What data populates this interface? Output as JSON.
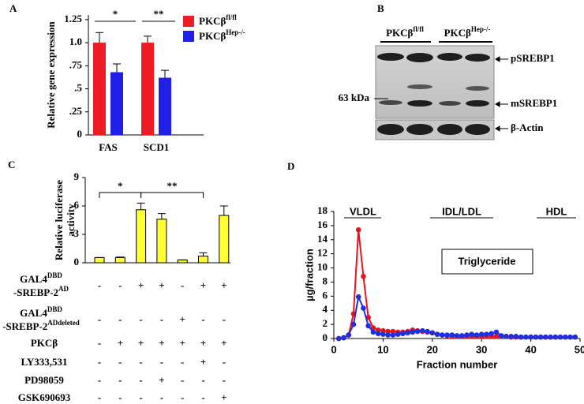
{
  "panel_labels": [
    "A",
    "B",
    "C",
    "D"
  ],
  "blot": {
    "lanes": [
      {
        "text": "PKCβ",
        "sup": "fl/fl"
      },
      {
        "text": "PKCβ",
        "sup": "Hep-/-"
      }
    ],
    "bands": [
      "pSREBP1",
      "mSREBP1",
      "β-Actin"
    ],
    "marker": "63 kDa"
  },
  "chart_data": [
    {
      "type": "bar",
      "ylabel": "Relative gene expression",
      "categories": [
        "FAS",
        "SCD1"
      ],
      "series": [
        {
          "name": "PKCβ",
          "name_superscript": "fl/fl",
          "color": "#ee1c24",
          "values": [
            1.0,
            1.0
          ],
          "errors": [
            0.11,
            0.07
          ]
        },
        {
          "name": "PKCβ",
          "name_superscript": "Hep-/-",
          "color": "#1f1fe6",
          "values": [
            0.68,
            0.62
          ],
          "errors": [
            0.09,
            0.08
          ]
        }
      ],
      "ylim": [
        0,
        1.3
      ],
      "yticks": [
        0,
        {
          "value": 0.25,
          "label": ".25"
        },
        {
          "value": 0.5,
          "label": ".5"
        },
        {
          "value": 0.75,
          "label": ".75"
        },
        {
          "value": 1,
          "label": "1.0"
        },
        1.25
      ],
      "annotations": [
        "*",
        "**"
      ]
    },
    {
      "type": "bar",
      "ylabel": [
        "Relative luciferase",
        "activity"
      ],
      "color": "#ffff33",
      "values": [
        0.55,
        0.55,
        5.6,
        4.6,
        0.3,
        0.7,
        5.0
      ],
      "errors": [
        0,
        0.05,
        0.7,
        0.6,
        0,
        0.35,
        1.0
      ],
      "ylim": [
        0,
        9
      ],
      "yticks": [
        0,
        3,
        6,
        9
      ],
      "annotations": [
        "*",
        "**"
      ],
      "conditions": [
        {
          "label": [
            [
              "GAL4",
              "DBD"
            ],
            [
              "-SREBP-2",
              "AD"
            ]
          ],
          "values": [
            "-",
            "-",
            "+",
            "+",
            "-",
            "+",
            "+"
          ]
        },
        {
          "label": [
            [
              "GAL4",
              "DBD"
            ],
            [
              "-SREBP-2",
              "ADdeleted"
            ]
          ],
          "values": [
            "-",
            "-",
            "-",
            "-",
            "+",
            "-",
            "-"
          ]
        },
        {
          "label": [
            [
              "PKCβ"
            ]
          ],
          "values": [
            "-",
            "+",
            "+",
            "+",
            "+",
            "+",
            "+"
          ]
        },
        {
          "label": [
            [
              "LY333,531"
            ]
          ],
          "values": [
            "-",
            "-",
            "-",
            "-",
            "-",
            "+",
            "-"
          ]
        },
        {
          "label": [
            [
              "PD98059"
            ]
          ],
          "values": [
            "-",
            "-",
            "-",
            "+",
            "-",
            "-",
            "-"
          ]
        },
        {
          "label": [
            [
              "GSK690693"
            ]
          ],
          "values": [
            "-",
            "-",
            "-",
            "-",
            "-",
            "-",
            "+"
          ]
        }
      ]
    },
    {
      "type": "line",
      "xlabel": "Fraction number",
      "ylabel": "µg/fraction",
      "x": [
        1,
        2,
        3,
        4,
        5,
        6,
        7,
        8,
        9,
        10,
        11,
        12,
        13,
        14,
        15,
        16,
        17,
        18,
        19,
        20,
        21,
        22,
        23,
        24,
        25,
        26,
        27,
        28,
        29,
        30,
        31,
        32,
        33,
        34,
        35,
        36,
        37,
        38,
        39,
        40,
        41,
        42,
        43,
        44,
        45,
        46,
        47,
        48,
        49
      ],
      "series": [
        {
          "color": "#e8141c",
          "values": [
            0,
            0.1,
            0.5,
            3.5,
            15.4,
            8.8,
            3.0,
            1.5,
            1.2,
            1.1,
            1.0,
            1.0,
            0.9,
            0.9,
            1.0,
            1.2,
            1.1,
            1.0,
            0.9,
            0.8,
            0.6,
            0.5,
            0.4,
            0.3,
            0.3,
            0.3,
            0.3,
            0.3,
            0.3,
            0.3,
            0.3,
            0.3,
            0.3,
            0.3,
            0.3,
            0.2,
            0.2,
            0.2,
            0.2,
            0.2,
            0.2,
            0.2,
            0.2,
            0.2,
            0.2,
            0.2,
            0.2,
            0.2,
            0.2
          ]
        },
        {
          "color": "#1f2ee0",
          "values": [
            0,
            0.1,
            0.5,
            2.0,
            5.9,
            4.3,
            1.8,
            0.9,
            0.7,
            0.6,
            0.5,
            0.5,
            0.6,
            0.7,
            0.8,
            0.9,
            1.0,
            1.1,
            1.0,
            0.8,
            0.6,
            0.5,
            0.5,
            0.5,
            0.4,
            0.4,
            0.5,
            0.6,
            0.5,
            0.6,
            0.6,
            0.7,
            0.9,
            0.4,
            0.3,
            0.3,
            0.3,
            0.2,
            0.2,
            0.2,
            0.2,
            0.2,
            0.2,
            0.2,
            0.2,
            0.2,
            0.2,
            0.2,
            0.2
          ]
        }
      ],
      "xlim": [
        0,
        50
      ],
      "xticks": [
        0,
        10,
        20,
        30,
        40,
        50
      ],
      "ylim": [
        0,
        18
      ],
      "yticks": [
        0,
        2,
        4,
        6,
        8,
        10,
        12,
        14,
        16,
        18
      ],
      "annotations": [
        "VLDL",
        "IDL/LDL",
        "HDL",
        "Triglyceride"
      ]
    }
  ]
}
